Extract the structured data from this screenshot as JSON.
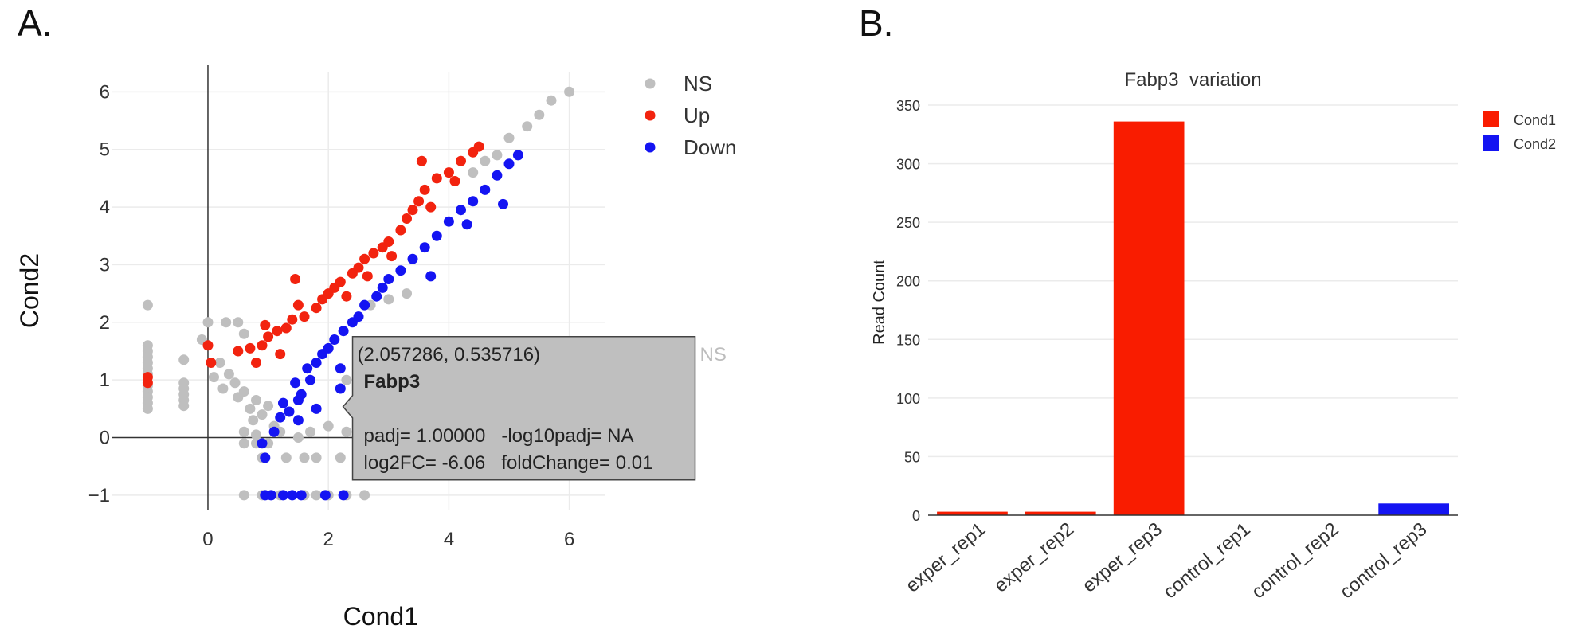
{
  "panels": {
    "a_label": "A.",
    "b_label": "B."
  },
  "chart_data": [
    {
      "type": "scatter",
      "title": "",
      "xlabel": "Cond1",
      "ylabel": "Cond2",
      "xlim": [
        -1.6,
        6.6
      ],
      "ylim": [
        -1.25,
        6.35
      ],
      "xticks": [
        0,
        2,
        4,
        6
      ],
      "yticks": [
        -1,
        0,
        1,
        2,
        3,
        4,
        5,
        6
      ],
      "grid": true,
      "legend_position": "top-right",
      "series": [
        {
          "name": "NS",
          "color": "#bfbfbf",
          "points": [
            [
              -1,
              2.3
            ],
            [
              -1,
              1.6
            ],
            [
              -1,
              1.5
            ],
            [
              -1,
              1.4
            ],
            [
              -1,
              1.3
            ],
            [
              -1,
              1.2
            ],
            [
              -1,
              1.1
            ],
            [
              -1,
              0.9
            ],
            [
              -1,
              0.8
            ],
            [
              -1,
              0.7
            ],
            [
              -1,
              0.6
            ],
            [
              -1,
              0.5
            ],
            [
              -0.4,
              1.35
            ],
            [
              -0.4,
              0.95
            ],
            [
              -0.4,
              0.85
            ],
            [
              -0.4,
              0.75
            ],
            [
              -0.4,
              0.65
            ],
            [
              -0.4,
              0.55
            ],
            [
              0.0,
              2.0
            ],
            [
              -0.1,
              1.7
            ],
            [
              0.3,
              2.0
            ],
            [
              0.5,
              2.0
            ],
            [
              0.6,
              1.8
            ],
            [
              0.2,
              1.3
            ],
            [
              0.35,
              1.1
            ],
            [
              0.1,
              1.05
            ],
            [
              0.45,
              0.95
            ],
            [
              0.25,
              0.85
            ],
            [
              0.6,
              0.8
            ],
            [
              0.5,
              0.7
            ],
            [
              0.8,
              0.65
            ],
            [
              0.7,
              0.5
            ],
            [
              0.9,
              0.4
            ],
            [
              1.0,
              0.55
            ],
            [
              0.75,
              0.3
            ],
            [
              0.6,
              0.1
            ],
            [
              0.8,
              0.05
            ],
            [
              1.1,
              0.2
            ],
            [
              0.6,
              -0.1
            ],
            [
              0.8,
              -0.1
            ],
            [
              1.0,
              -0.1
            ],
            [
              1.2,
              0.1
            ],
            [
              1.5,
              0.0
            ],
            [
              1.7,
              0.1
            ],
            [
              2.0,
              0.2
            ],
            [
              2.3,
              0.1
            ],
            [
              2.7,
              0.0
            ],
            [
              3.0,
              0.1
            ],
            [
              0.9,
              -0.35
            ],
            [
              1.3,
              -0.35
            ],
            [
              1.6,
              -0.35
            ],
            [
              1.8,
              -0.35
            ],
            [
              2.2,
              -0.35
            ],
            [
              2.5,
              -0.35
            ],
            [
              2.7,
              -0.35
            ],
            [
              3.0,
              -0.35
            ],
            [
              3.3,
              -0.35
            ],
            [
              1.2,
              -1.0
            ],
            [
              1.6,
              -1.0
            ],
            [
              1.8,
              -1.0
            ],
            [
              2.0,
              -1.0
            ],
            [
              2.3,
              -1.0
            ],
            [
              2.6,
              -1.0
            ],
            [
              0.6,
              -1.0
            ],
            [
              0.9,
              -1.0
            ],
            [
              5.0,
              5.2
            ],
            [
              5.3,
              5.4
            ],
            [
              5.5,
              5.6
            ],
            [
              5.7,
              5.85
            ],
            [
              6.0,
              6.0
            ],
            [
              4.8,
              4.9
            ],
            [
              4.6,
              4.8
            ],
            [
              4.4,
              4.6
            ],
            [
              2.7,
              2.3
            ],
            [
              3.0,
              2.4
            ],
            [
              3.3,
              2.5
            ],
            [
              2.5,
              1.6
            ],
            [
              2.3,
              1.0
            ],
            [
              2.6,
              1.1
            ],
            [
              2.9,
              1.4
            ]
          ]
        },
        {
          "name": "Up",
          "color": "#f2230f",
          "points": [
            [
              -1,
              1.05
            ],
            [
              -1,
              0.95
            ],
            [
              0,
              1.6
            ],
            [
              0.05,
              1.3
            ],
            [
              0.5,
              1.5
            ],
            [
              0.7,
              1.55
            ],
            [
              0.9,
              1.6
            ],
            [
              1.0,
              1.75
            ],
            [
              0.95,
              1.95
            ],
            [
              1.15,
              1.85
            ],
            [
              1.3,
              1.9
            ],
            [
              1.4,
              2.05
            ],
            [
              1.6,
              2.1
            ],
            [
              1.5,
              2.3
            ],
            [
              1.8,
              2.25
            ],
            [
              1.9,
              2.4
            ],
            [
              2.0,
              2.5
            ],
            [
              2.1,
              2.6
            ],
            [
              2.2,
              2.7
            ],
            [
              2.4,
              2.85
            ],
            [
              2.5,
              2.95
            ],
            [
              2.6,
              3.1
            ],
            [
              2.75,
              3.2
            ],
            [
              2.9,
              3.3
            ],
            [
              3.0,
              3.4
            ],
            [
              3.2,
              3.6
            ],
            [
              3.3,
              3.8
            ],
            [
              3.4,
              3.95
            ],
            [
              3.5,
              4.1
            ],
            [
              3.6,
              4.3
            ],
            [
              3.8,
              4.5
            ],
            [
              4.0,
              4.6
            ],
            [
              4.2,
              4.8
            ],
            [
              4.4,
              4.95
            ],
            [
              4.5,
              5.05
            ],
            [
              3.55,
              4.8
            ],
            [
              1.45,
              2.75
            ],
            [
              0.8,
              1.3
            ],
            [
              1.2,
              1.45
            ],
            [
              2.3,
              2.45
            ],
            [
              2.65,
              2.8
            ],
            [
              3.05,
              3.15
            ],
            [
              3.7,
              4.0
            ],
            [
              4.1,
              4.45
            ]
          ]
        },
        {
          "name": "Down",
          "color": "#1414f2",
          "points": [
            [
              0.9,
              -0.1
            ],
            [
              0.95,
              -0.35
            ],
            [
              1.1,
              0.1
            ],
            [
              1.2,
              0.35
            ],
            [
              1.35,
              0.45
            ],
            [
              1.25,
              0.6
            ],
            [
              1.5,
              0.65
            ],
            [
              1.55,
              0.75
            ],
            [
              1.45,
              0.95
            ],
            [
              1.7,
              1.0
            ],
            [
              1.65,
              1.2
            ],
            [
              1.8,
              1.3
            ],
            [
              1.9,
              1.45
            ],
            [
              2.0,
              1.55
            ],
            [
              2.1,
              1.7
            ],
            [
              2.25,
              1.85
            ],
            [
              2.4,
              2.0
            ],
            [
              2.5,
              2.1
            ],
            [
              2.6,
              2.3
            ],
            [
              2.8,
              2.45
            ],
            [
              2.9,
              2.6
            ],
            [
              3.0,
              2.75
            ],
            [
              3.2,
              2.9
            ],
            [
              3.4,
              3.1
            ],
            [
              3.6,
              3.3
            ],
            [
              3.8,
              3.5
            ],
            [
              4.0,
              3.75
            ],
            [
              4.2,
              3.95
            ],
            [
              4.4,
              4.1
            ],
            [
              4.6,
              4.3
            ],
            [
              4.8,
              4.55
            ],
            [
              5.0,
              4.75
            ],
            [
              5.15,
              4.9
            ],
            [
              4.9,
              4.05
            ],
            [
              4.3,
              3.7
            ],
            [
              3.7,
              2.8
            ],
            [
              2.2,
              1.2
            ],
            [
              1.5,
              0.3
            ],
            [
              1.8,
              0.5
            ],
            [
              2.2,
              0.85
            ],
            [
              0.95,
              -1.0
            ],
            [
              1.05,
              -1.0
            ],
            [
              1.25,
              -1.0
            ],
            [
              1.4,
              -1.0
            ],
            [
              1.55,
              -1.0
            ],
            [
              1.95,
              -1.0
            ],
            [
              2.25,
              -1.0
            ]
          ]
        }
      ],
      "tooltip": {
        "coords": "(2.057286, 0.535716)",
        "gene": "Fabp3",
        "line1": "padj= 1.00000   -log10padj= NA",
        "line2": "log2FC= -6.06   foldChange= 0.01",
        "side_label": "NS",
        "anchor": [
          2.057286,
          0.535716
        ]
      }
    },
    {
      "type": "bar",
      "title": "Fabp3  variation",
      "xlabel": "",
      "ylabel": "Read Count",
      "ylim": [
        0,
        350
      ],
      "yticks": [
        0,
        50,
        100,
        150,
        200,
        250,
        300,
        350
      ],
      "categories": [
        "exper_rep1",
        "exper_rep2",
        "exper_rep3",
        "control_rep1",
        "control_rep2",
        "control_rep3"
      ],
      "values": [
        3,
        3,
        336,
        0,
        0,
        10
      ],
      "colors": [
        "#f91c00",
        "#f91c00",
        "#f91c00",
        "#1414f2",
        "#1414f2",
        "#1414f2"
      ],
      "legend_position": "top-right",
      "legend": [
        {
          "name": "Cond1",
          "color": "#f91c00"
        },
        {
          "name": "Cond2",
          "color": "#1414f2"
        }
      ]
    }
  ]
}
